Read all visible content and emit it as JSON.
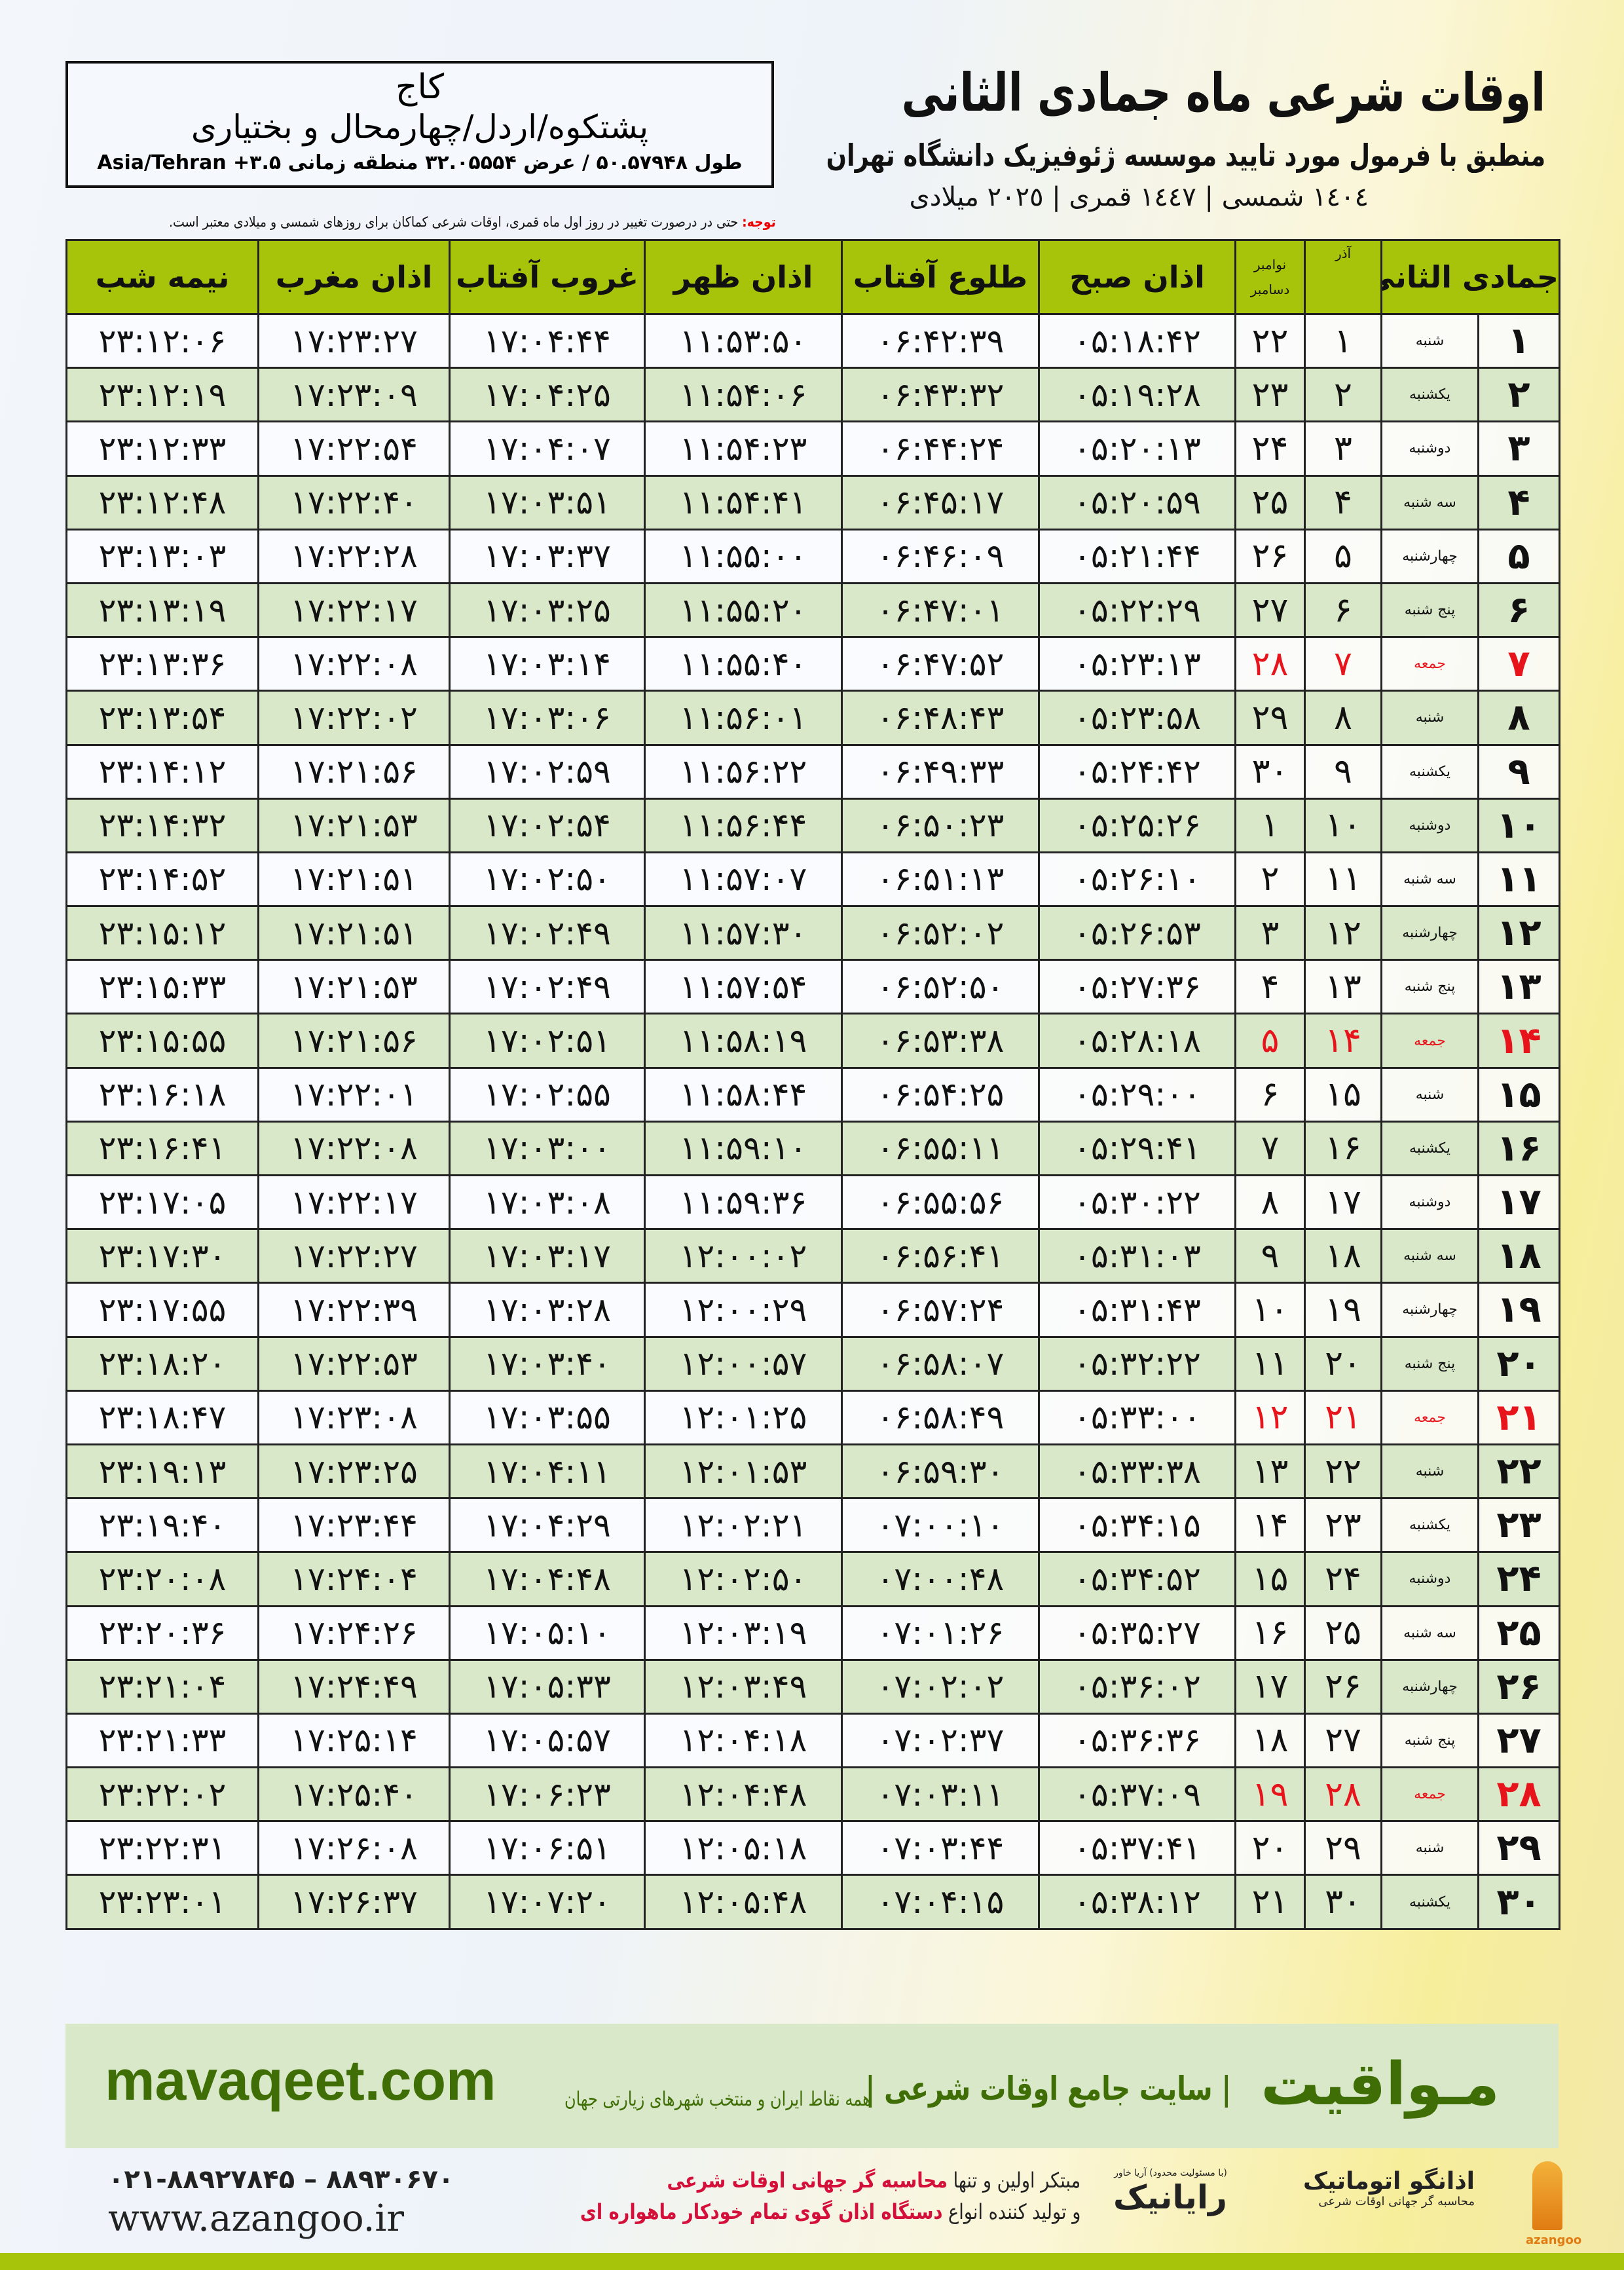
{
  "header": {
    "title": "اوقات شرعی ماه جمادی الثانی",
    "subtitle": "منطبق با فرمول مورد تایید موسسه ژئوفیزیک دانشگاه تهران",
    "dates": "١٤٠٤ شمسی | ١٤٤٧ قمری | ٢٠٢٥ میلادی"
  },
  "location": {
    "city": "کاج",
    "province": "پشتکوه/اردل/چهارمحال و بختیاری",
    "coords": "طول ۵۰.۵۷۹۴۸ / عرض ۳۲.۰۵۵۵۴ منطقه زمانی ۳.۵+ Asia/Tehran"
  },
  "note": {
    "label": "توجه:",
    "text": " حتی در درصورت تغییر در روز اول ماه قمری، اوقات شرعی کماکان برای روزهای شمسی و میلادی معتبر است."
  },
  "columns": {
    "month": "جمادی الثانی",
    "azar": "آذر",
    "nov": "نوامبر",
    "dec": "دسامبر",
    "fajr": "اذان صبح",
    "sunrise": "طلوع آفتاب",
    "dhuhr": "اذان ظهر",
    "sunset": "غروب آفتاب",
    "maghrib": "اذان مغرب",
    "midnight": "نیمه شب"
  },
  "colors": {
    "header": "#a8c40a",
    "row_alt": "#d9e8c8",
    "friday": "#e8141c",
    "brand": "#3f6e06"
  },
  "rows": [
    [
      "۱",
      "شنبه",
      "۱",
      "۲۲",
      "۰۵:۱۸:۴۲",
      "۰۶:۴۲:۳۹",
      "۱۱:۵۳:۵۰",
      "۱۷:۰۴:۴۴",
      "۱۷:۲۳:۲۷",
      "۲۳:۱۲:۰۶"
    ],
    [
      "۲",
      "یکشنبه",
      "۲",
      "۲۳",
      "۰۵:۱۹:۲۸",
      "۰۶:۴۳:۳۲",
      "۱۱:۵۴:۰۶",
      "۱۷:۰۴:۲۵",
      "۱۷:۲۳:۰۹",
      "۲۳:۱۲:۱۹"
    ],
    [
      "۳",
      "دوشنبه",
      "۳",
      "۲۴",
      "۰۵:۲۰:۱۳",
      "۰۶:۴۴:۲۴",
      "۱۱:۵۴:۲۳",
      "۱۷:۰۴:۰۷",
      "۱۷:۲۲:۵۴",
      "۲۳:۱۲:۳۳"
    ],
    [
      "۴",
      "سه شنبه",
      "۴",
      "۲۵",
      "۰۵:۲۰:۵۹",
      "۰۶:۴۵:۱۷",
      "۱۱:۵۴:۴۱",
      "۱۷:۰۳:۵۱",
      "۱۷:۲۲:۴۰",
      "۲۳:۱۲:۴۸"
    ],
    [
      "۵",
      "چهارشنبه",
      "۵",
      "۲۶",
      "۰۵:۲۱:۴۴",
      "۰۶:۴۶:۰۹",
      "۱۱:۵۵:۰۰",
      "۱۷:۰۳:۳۷",
      "۱۷:۲۲:۲۸",
      "۲۳:۱۳:۰۳"
    ],
    [
      "۶",
      "پنج شنبه",
      "۶",
      "۲۷",
      "۰۵:۲۲:۲۹",
      "۰۶:۴۷:۰۱",
      "۱۱:۵۵:۲۰",
      "۱۷:۰۳:۲۵",
      "۱۷:۲۲:۱۷",
      "۲۳:۱۳:۱۹"
    ],
    [
      "۷",
      "جمعه",
      "۷",
      "۲۸",
      "۰۵:۲۳:۱۳",
      "۰۶:۴۷:۵۲",
      "۱۱:۵۵:۴۰",
      "۱۷:۰۳:۱۴",
      "۱۷:۲۲:۰۸",
      "۲۳:۱۳:۳۶"
    ],
    [
      "۸",
      "شنبه",
      "۸",
      "۲۹",
      "۰۵:۲۳:۵۸",
      "۰۶:۴۸:۴۳",
      "۱۱:۵۶:۰۱",
      "۱۷:۰۳:۰۶",
      "۱۷:۲۲:۰۲",
      "۲۳:۱۳:۵۴"
    ],
    [
      "۹",
      "یکشنبه",
      "۹",
      "۳۰",
      "۰۵:۲۴:۴۲",
      "۰۶:۴۹:۳۳",
      "۱۱:۵۶:۲۲",
      "۱۷:۰۲:۵۹",
      "۱۷:۲۱:۵۶",
      "۲۳:۱۴:۱۲"
    ],
    [
      "۱۰",
      "دوشنبه",
      "۱۰",
      "۱",
      "۰۵:۲۵:۲۶",
      "۰۶:۵۰:۲۳",
      "۱۱:۵۶:۴۴",
      "۱۷:۰۲:۵۴",
      "۱۷:۲۱:۵۳",
      "۲۳:۱۴:۳۲"
    ],
    [
      "۱۱",
      "سه شنبه",
      "۱۱",
      "۲",
      "۰۵:۲۶:۱۰",
      "۰۶:۵۱:۱۳",
      "۱۱:۵۷:۰۷",
      "۱۷:۰۲:۵۰",
      "۱۷:۲۱:۵۱",
      "۲۳:۱۴:۵۲"
    ],
    [
      "۱۲",
      "چهارشنبه",
      "۱۲",
      "۳",
      "۰۵:۲۶:۵۳",
      "۰۶:۵۲:۰۲",
      "۱۱:۵۷:۳۰",
      "۱۷:۰۲:۴۹",
      "۱۷:۲۱:۵۱",
      "۲۳:۱۵:۱۲"
    ],
    [
      "۱۳",
      "پنج شنبه",
      "۱۳",
      "۴",
      "۰۵:۲۷:۳۶",
      "۰۶:۵۲:۵۰",
      "۱۱:۵۷:۵۴",
      "۱۷:۰۲:۴۹",
      "۱۷:۲۱:۵۳",
      "۲۳:۱۵:۳۳"
    ],
    [
      "۱۴",
      "جمعه",
      "۱۴",
      "۵",
      "۰۵:۲۸:۱۸",
      "۰۶:۵۳:۳۸",
      "۱۱:۵۸:۱۹",
      "۱۷:۰۲:۵۱",
      "۱۷:۲۱:۵۶",
      "۲۳:۱۵:۵۵"
    ],
    [
      "۱۵",
      "شنبه",
      "۱۵",
      "۶",
      "۰۵:۲۹:۰۰",
      "۰۶:۵۴:۲۵",
      "۱۱:۵۸:۴۴",
      "۱۷:۰۲:۵۵",
      "۱۷:۲۲:۰۱",
      "۲۳:۱۶:۱۸"
    ],
    [
      "۱۶",
      "یکشنبه",
      "۱۶",
      "۷",
      "۰۵:۲۹:۴۱",
      "۰۶:۵۵:۱۱",
      "۱۱:۵۹:۱۰",
      "۱۷:۰۳:۰۰",
      "۱۷:۲۲:۰۸",
      "۲۳:۱۶:۴۱"
    ],
    [
      "۱۷",
      "دوشنبه",
      "۱۷",
      "۸",
      "۰۵:۳۰:۲۲",
      "۰۶:۵۵:۵۶",
      "۱۱:۵۹:۳۶",
      "۱۷:۰۳:۰۸",
      "۱۷:۲۲:۱۷",
      "۲۳:۱۷:۰۵"
    ],
    [
      "۱۸",
      "سه شنبه",
      "۱۸",
      "۹",
      "۰۵:۳۱:۰۳",
      "۰۶:۵۶:۴۱",
      "۱۲:۰۰:۰۲",
      "۱۷:۰۳:۱۷",
      "۱۷:۲۲:۲۷",
      "۲۳:۱۷:۳۰"
    ],
    [
      "۱۹",
      "چهارشنبه",
      "۱۹",
      "۱۰",
      "۰۵:۳۱:۴۳",
      "۰۶:۵۷:۲۴",
      "۱۲:۰۰:۲۹",
      "۱۷:۰۳:۲۸",
      "۱۷:۲۲:۳۹",
      "۲۳:۱۷:۵۵"
    ],
    [
      "۲۰",
      "پنج شنبه",
      "۲۰",
      "۱۱",
      "۰۵:۳۲:۲۲",
      "۰۶:۵۸:۰۷",
      "۱۲:۰۰:۵۷",
      "۱۷:۰۳:۴۰",
      "۱۷:۲۲:۵۳",
      "۲۳:۱۸:۲۰"
    ],
    [
      "۲۱",
      "جمعه",
      "۲۱",
      "۱۲",
      "۰۵:۳۳:۰۰",
      "۰۶:۵۸:۴۹",
      "۱۲:۰۱:۲۵",
      "۱۷:۰۳:۵۵",
      "۱۷:۲۳:۰۸",
      "۲۳:۱۸:۴۷"
    ],
    [
      "۲۲",
      "شنبه",
      "۲۲",
      "۱۳",
      "۰۵:۳۳:۳۸",
      "۰۶:۵۹:۳۰",
      "۱۲:۰۱:۵۳",
      "۱۷:۰۴:۱۱",
      "۱۷:۲۳:۲۵",
      "۲۳:۱۹:۱۳"
    ],
    [
      "۲۳",
      "یکشنبه",
      "۲۳",
      "۱۴",
      "۰۵:۳۴:۱۵",
      "۰۷:۰۰:۱۰",
      "۱۲:۰۲:۲۱",
      "۱۷:۰۴:۲۹",
      "۱۷:۲۳:۴۴",
      "۲۳:۱۹:۴۰"
    ],
    [
      "۲۴",
      "دوشنبه",
      "۲۴",
      "۱۵",
      "۰۵:۳۴:۵۲",
      "۰۷:۰۰:۴۸",
      "۱۲:۰۲:۵۰",
      "۱۷:۰۴:۴۸",
      "۱۷:۲۴:۰۴",
      "۲۳:۲۰:۰۸"
    ],
    [
      "۲۵",
      "سه شنبه",
      "۲۵",
      "۱۶",
      "۰۵:۳۵:۲۷",
      "۰۷:۰۱:۲۶",
      "۱۲:۰۳:۱۹",
      "۱۷:۰۵:۱۰",
      "۱۷:۲۴:۲۶",
      "۲۳:۲۰:۳۶"
    ],
    [
      "۲۶",
      "چهارشنبه",
      "۲۶",
      "۱۷",
      "۰۵:۳۶:۰۲",
      "۰۷:۰۲:۰۲",
      "۱۲:۰۳:۴۹",
      "۱۷:۰۵:۳۳",
      "۱۷:۲۴:۴۹",
      "۲۳:۲۱:۰۴"
    ],
    [
      "۲۷",
      "پنج شنبه",
      "۲۷",
      "۱۸",
      "۰۵:۳۶:۳۶",
      "۰۷:۰۲:۳۷",
      "۱۲:۰۴:۱۸",
      "۱۷:۰۵:۵۷",
      "۱۷:۲۵:۱۴",
      "۲۳:۲۱:۳۳"
    ],
    [
      "۲۸",
      "جمعه",
      "۲۸",
      "۱۹",
      "۰۵:۳۷:۰۹",
      "۰۷:۰۳:۱۱",
      "۱۲:۰۴:۴۸",
      "۱۷:۰۶:۲۳",
      "۱۷:۲۵:۴۰",
      "۲۳:۲۲:۰۲"
    ],
    [
      "۲۹",
      "شنبه",
      "۲۹",
      "۲۰",
      "۰۵:۳۷:۴۱",
      "۰۷:۰۳:۴۴",
      "۱۲:۰۵:۱۸",
      "۱۷:۰۶:۵۱",
      "۱۷:۲۶:۰۸",
      "۲۳:۲۲:۳۱"
    ],
    [
      "۳۰",
      "یکشنبه",
      "۳۰",
      "۲۱",
      "۰۵:۳۸:۱۲",
      "۰۷:۰۴:۱۵",
      "۱۲:۰۵:۴۸",
      "۱۷:۰۷:۲۰",
      "۱۷:۲۶:۳۷",
      "۲۳:۲۳:۰۱"
    ]
  ],
  "footer": {
    "brand": "مـواقیت",
    "slogan": "| سایت جامع اوقات شرعی |",
    "slogan2": "همه نقاط ایران و منتخب شهرهای زیارتی جهان",
    "site": "mavaqeet.com",
    "phone": "۰۲۱-۸۸۹۲۷۸۴۵ – ۸۸۹۳۰۶۷۰",
    "www": "www.azangoo.ir",
    "promo1a": "مبتکر اولین و تنها ",
    "promo1b": "محاسبه گر جهانی اوقات شرعی",
    "promo2a": "و تولید کننده انواع ",
    "promo2b": "دستگاه اذان گوی تمام خودکار ماهواره ای",
    "logo_rayanik": "رایانیک",
    "logo_rayanik_small": "(با مسئولیت محدود) آریا خاور",
    "logo_azangoo": "اذانگو اتوماتیک",
    "logo_azangoo_small": "محاسبه گر جهانی اوقات شرعی",
    "logo_azangoo_latin": "azangoo"
  }
}
